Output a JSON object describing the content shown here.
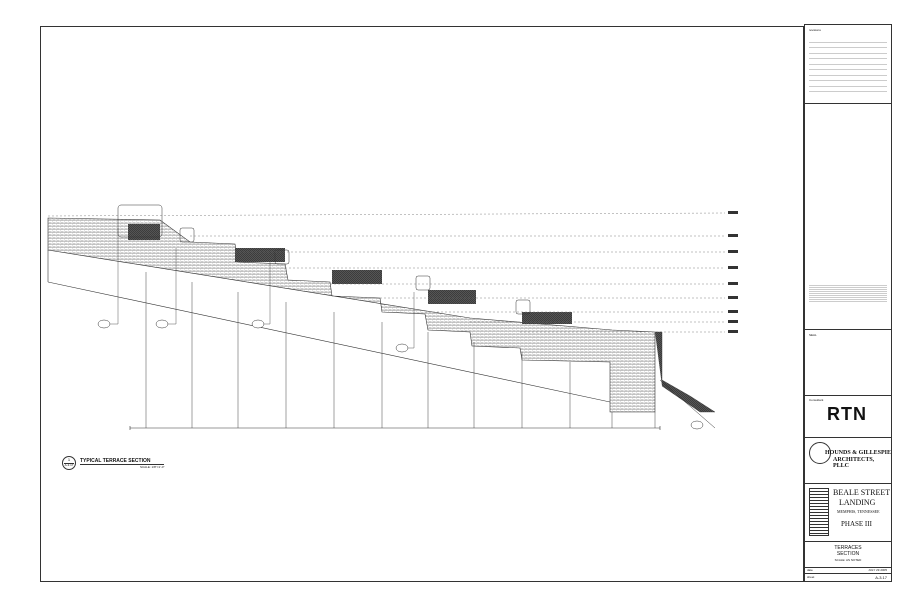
{
  "drawing": {
    "section_number": "1",
    "section_sheet": "A-3.17",
    "title": "TYPICAL TERRACE SECTION",
    "scale": "SCALE: 1/8\"=1'-0\""
  },
  "title_block": {
    "revisions_label": "revisions",
    "seals_label": "SEAL",
    "consultant_label": "Consultant",
    "consultant_logo": "RTN",
    "architect_name_1": "HOUNDS & GILLESPIE",
    "architect_name_2": "ARCHITECTS, PLLC",
    "project_name_1": "BEALE STREET",
    "project_name_2": "LANDING",
    "project_location": "MEMPHIS, TENNESSEE",
    "project_phase": "PHASE III",
    "sheet_title_1": "TERRACES",
    "sheet_title_2": "SECTION",
    "sheet_scale": "SCALE: AS NOTED",
    "date_label": "date",
    "date_value": "JULY 29 2005",
    "sheet_label": "sheet",
    "sheet_number": "A-3.17"
  }
}
